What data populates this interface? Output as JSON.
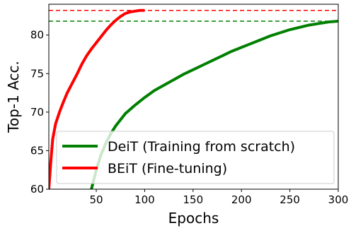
{
  "chart_data": {
    "type": "line",
    "xlabel": "Epochs",
    "ylabel": "Top-1 Acc.",
    "xlim": [
      1,
      300
    ],
    "ylim": [
      60,
      84
    ],
    "xticks": [
      50,
      100,
      150,
      200,
      250,
      300
    ],
    "yticks": [
      60,
      65,
      70,
      75,
      80
    ],
    "grid": false,
    "legend_position": "lower right",
    "reference_lines": [
      {
        "y": 83.2,
        "color": "#ff0000",
        "style": "dashed"
      },
      {
        "y": 81.8,
        "color": "#008000",
        "style": "dashed"
      }
    ],
    "series": [
      {
        "name": "DeiT (Training from scratch)",
        "color": "#008000",
        "x": [
          45,
          50,
          55,
          60,
          65,
          70,
          75,
          80,
          90,
          100,
          110,
          120,
          130,
          140,
          150,
          160,
          170,
          180,
          190,
          200,
          210,
          220,
          230,
          240,
          250,
          260,
          270,
          280,
          290,
          300
        ],
        "y": [
          60.0,
          62.5,
          64.5,
          66.0,
          67.2,
          68.2,
          69.0,
          69.8,
          70.9,
          71.9,
          72.8,
          73.5,
          74.2,
          74.9,
          75.5,
          76.1,
          76.7,
          77.3,
          77.9,
          78.4,
          78.9,
          79.4,
          79.9,
          80.3,
          80.7,
          81.0,
          81.3,
          81.5,
          81.7,
          81.8
        ]
      },
      {
        "name": "BEiT (Fine-tuning)",
        "color": "#ff0000",
        "x": [
          1,
          3,
          5,
          8,
          12,
          16,
          20,
          25,
          30,
          35,
          40,
          45,
          50,
          55,
          60,
          65,
          70,
          75,
          80,
          85,
          90,
          95,
          100
        ],
        "y": [
          60.0,
          63.5,
          66.5,
          68.5,
          70.0,
          71.3,
          72.5,
          73.7,
          74.9,
          76.2,
          77.3,
          78.2,
          79.0,
          79.8,
          80.6,
          81.3,
          81.9,
          82.4,
          82.8,
          83.0,
          83.1,
          83.2,
          83.2
        ]
      }
    ]
  }
}
